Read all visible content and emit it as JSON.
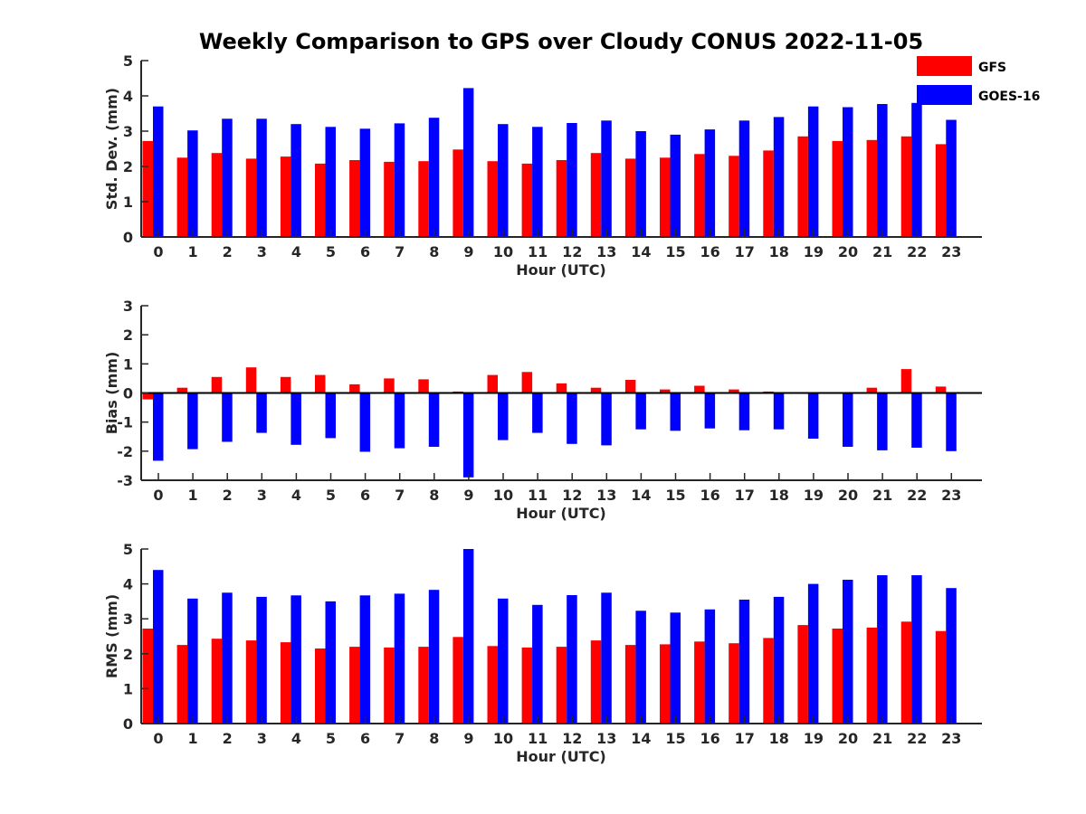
{
  "title": "Weekly Comparison to GPS over Cloudy CONUS 2022-11-05",
  "colors": {
    "GFS": "#ff0000",
    "GOES-16": "#0000ff",
    "axis": "#262626"
  },
  "chart_data": [
    {
      "type": "bar",
      "xlabel": "Hour (UTC)",
      "ylabel": "Std. Dev. (mm)",
      "ylim": [
        0,
        5
      ],
      "yticks": [
        0,
        1,
        2,
        3,
        4,
        5
      ],
      "grid": false,
      "legend": "top-right",
      "categories": [
        "0",
        "1",
        "2",
        "3",
        "4",
        "5",
        "6",
        "7",
        "8",
        "9",
        "10",
        "11",
        "12",
        "13",
        "14",
        "15",
        "16",
        "17",
        "18",
        "19",
        "20",
        "21",
        "22",
        "23"
      ],
      "series": [
        {
          "name": "GFS",
          "values": [
            2.72,
            2.25,
            2.38,
            2.22,
            2.28,
            2.08,
            2.18,
            2.13,
            2.15,
            2.48,
            2.15,
            2.08,
            2.18,
            2.38,
            2.22,
            2.25,
            2.35,
            2.3,
            2.45,
            2.85,
            2.72,
            2.75,
            2.85,
            2.63
          ]
        },
        {
          "name": "GOES-16",
          "values": [
            3.7,
            3.02,
            3.35,
            3.35,
            3.2,
            3.12,
            3.07,
            3.22,
            3.38,
            4.22,
            3.2,
            3.12,
            3.23,
            3.3,
            3.0,
            2.9,
            3.05,
            3.3,
            3.4,
            3.7,
            3.68,
            3.77,
            3.8,
            3.32
          ]
        }
      ]
    },
    {
      "type": "bar",
      "xlabel": "Hour (UTC)",
      "ylabel": "Bias (mm)",
      "ylim": [
        -3,
        3
      ],
      "yticks": [
        -3,
        -2,
        -1,
        0,
        1,
        2,
        3
      ],
      "grid": false,
      "categories": [
        "0",
        "1",
        "2",
        "3",
        "4",
        "5",
        "6",
        "7",
        "8",
        "9",
        "10",
        "11",
        "12",
        "13",
        "14",
        "15",
        "16",
        "17",
        "18",
        "19",
        "20",
        "21",
        "22",
        "23"
      ],
      "series": [
        {
          "name": "GFS",
          "values": [
            -0.22,
            0.18,
            0.55,
            0.88,
            0.55,
            0.62,
            0.3,
            0.5,
            0.47,
            0.05,
            0.62,
            0.72,
            0.33,
            0.18,
            0.45,
            0.12,
            0.25,
            0.12,
            0.05,
            0.0,
            -0.03,
            0.18,
            0.82,
            0.22
          ]
        },
        {
          "name": "GOES-16",
          "values": [
            -2.33,
            -1.93,
            -1.68,
            -1.37,
            -1.78,
            -1.55,
            -2.02,
            -1.9,
            -1.85,
            -2.9,
            -1.62,
            -1.37,
            -1.75,
            -1.8,
            -1.25,
            -1.3,
            -1.22,
            -1.28,
            -1.25,
            -1.57,
            -1.85,
            -1.97,
            -1.88,
            -2.0
          ]
        }
      ]
    },
    {
      "type": "bar",
      "xlabel": "Hour (UTC)",
      "ylabel": "RMS (mm)",
      "ylim": [
        0,
        5
      ],
      "yticks": [
        0,
        1,
        2,
        3,
        4,
        5
      ],
      "grid": false,
      "categories": [
        "0",
        "1",
        "2",
        "3",
        "4",
        "5",
        "6",
        "7",
        "8",
        "9",
        "10",
        "11",
        "12",
        "13",
        "14",
        "15",
        "16",
        "17",
        "18",
        "19",
        "20",
        "21",
        "22",
        "23"
      ],
      "series": [
        {
          "name": "GFS",
          "values": [
            2.72,
            2.25,
            2.43,
            2.38,
            2.33,
            2.15,
            2.2,
            2.18,
            2.2,
            2.48,
            2.22,
            2.18,
            2.2,
            2.38,
            2.25,
            2.27,
            2.35,
            2.3,
            2.45,
            2.82,
            2.72,
            2.75,
            2.92,
            2.65
          ]
        },
        {
          "name": "GOES-16",
          "values": [
            4.4,
            3.58,
            3.75,
            3.63,
            3.67,
            3.5,
            3.67,
            3.72,
            3.83,
            5.0,
            3.58,
            3.4,
            3.68,
            3.75,
            3.23,
            3.18,
            3.27,
            3.55,
            3.63,
            4.0,
            4.12,
            4.25,
            4.25,
            3.88
          ]
        }
      ]
    }
  ]
}
